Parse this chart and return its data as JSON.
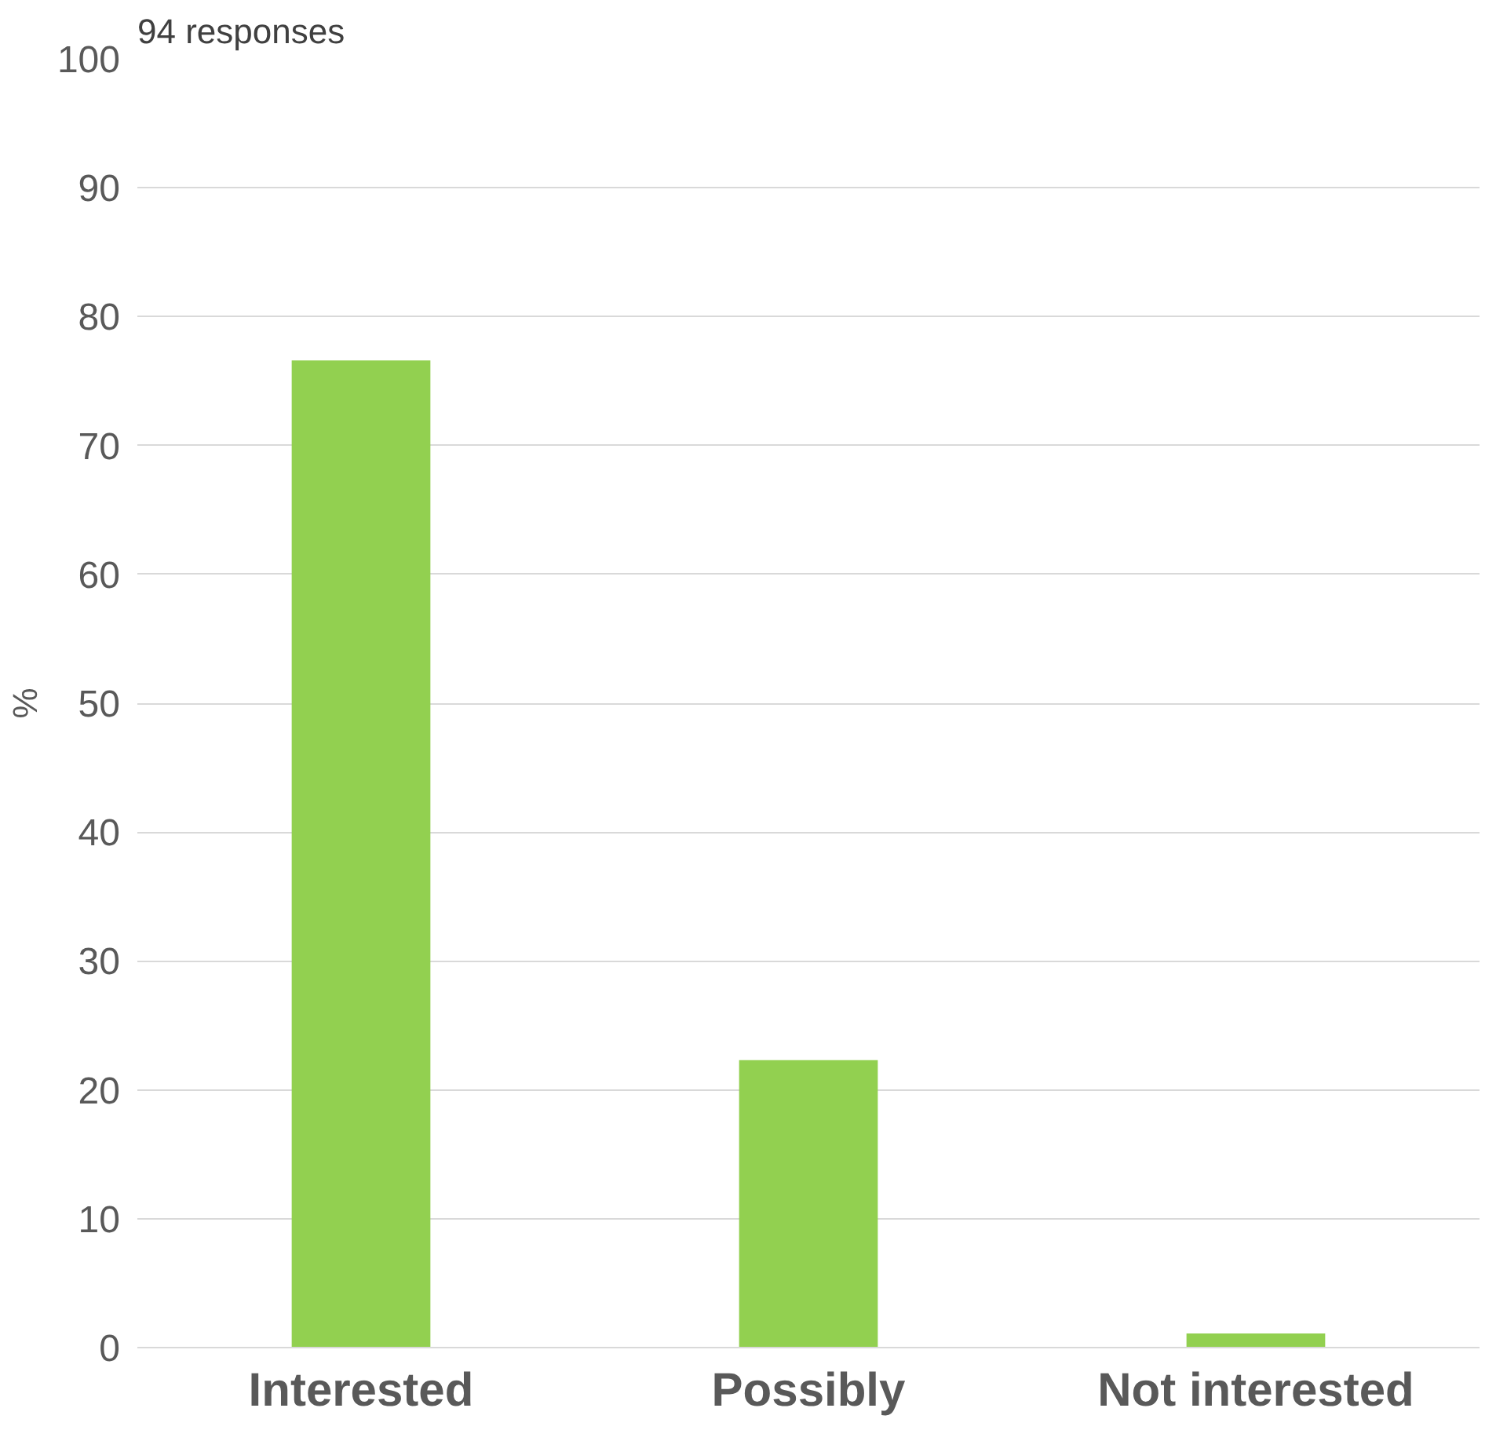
{
  "chart_data": {
    "type": "bar",
    "title": "94 responses",
    "ylabel": "%",
    "categories": [
      "Interested",
      "Possibly",
      "Not interested"
    ],
    "values": [
      76.6,
      22.3,
      1.1
    ],
    "color": "#92d050",
    "ylim": [
      0,
      100
    ],
    "yticks": [
      0,
      10,
      20,
      30,
      40,
      50,
      60,
      70,
      80,
      90,
      100
    ],
    "grid": "y"
  }
}
